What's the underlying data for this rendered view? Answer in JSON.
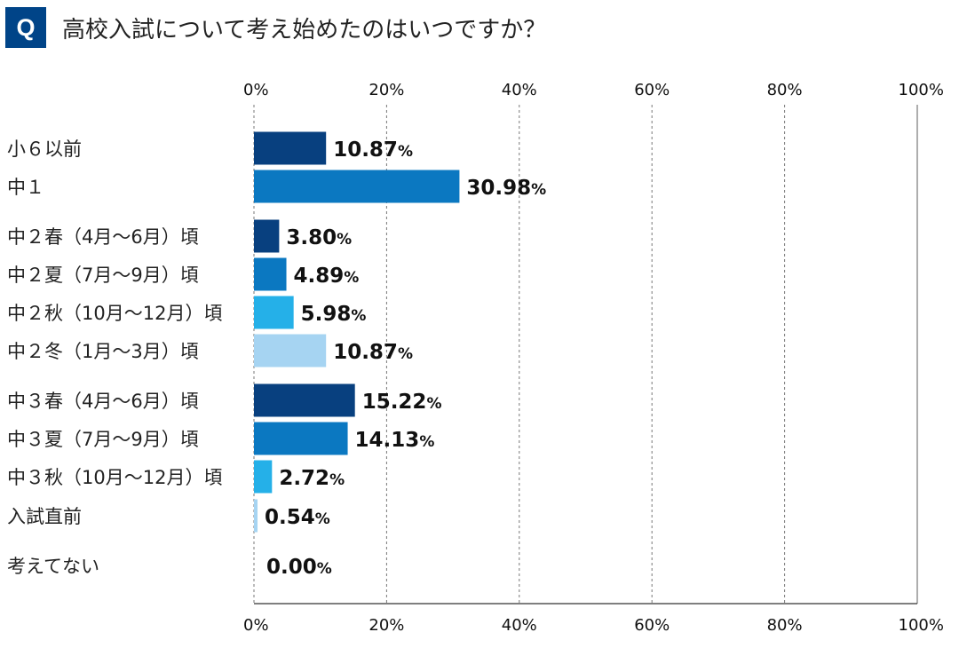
{
  "header": {
    "badge": "Q",
    "question": "高校入試について考え始めたのはいつですか？"
  },
  "colors": {
    "badge": "#004488",
    "dark_navy": "#08407f",
    "medium_blue": "#0b78c1",
    "sky_blue": "#25b0e8",
    "pale_blue": "#a6d4f2",
    "grid": "#777777"
  },
  "chart_data": {
    "type": "bar",
    "orientation": "horizontal",
    "title": "高校入試について考え始めたのはいつですか？",
    "xlim": [
      0,
      100
    ],
    "ticks": [
      "0%",
      "20%",
      "40%",
      "60%",
      "80%",
      "100%"
    ],
    "tick_values": [
      0,
      20,
      40,
      60,
      80,
      100
    ],
    "grid": true,
    "axis_top_and_bottom": true,
    "categories": [
      "小６以前",
      "中１",
      "中２春（4月〜6月）頃",
      "中２夏（7月〜9月）頃",
      "中２秋（10月〜12月）頃",
      "中２冬（1月〜3月）頃",
      "中３春（4月〜6月）頃",
      "中３夏（7月〜9月）頃",
      "中３秋（10月〜12月）頃",
      "入試直前",
      "考えてない"
    ],
    "values": [
      10.87,
      30.98,
      3.8,
      4.89,
      5.98,
      10.87,
      15.22,
      14.13,
      2.72,
      0.54,
      0.0
    ],
    "value_labels": [
      "10.87",
      "30.98",
      "3.80",
      "4.89",
      "5.98",
      "10.87",
      "15.22",
      "14.13",
      "2.72",
      "0.54",
      "0.00"
    ],
    "unit": "%",
    "bar_colors": [
      "dark_navy",
      "medium_blue",
      "dark_navy",
      "medium_blue",
      "sky_blue",
      "pale_blue",
      "dark_navy",
      "medium_blue",
      "sky_blue",
      "pale_blue",
      "none"
    ]
  }
}
